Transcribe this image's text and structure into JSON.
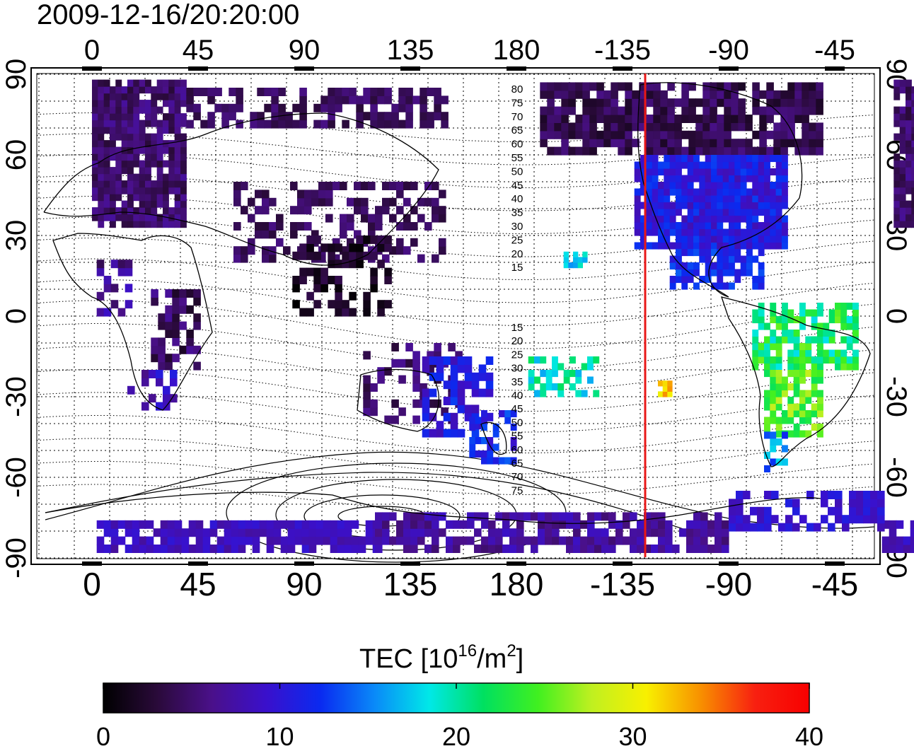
{
  "title": "2009-12-16/20:20:00",
  "map": {
    "lon_ticks": [
      "0",
      "45",
      "90",
      "135",
      "180",
      "-135",
      "-90",
      "-45"
    ],
    "lat_ticks": [
      "90",
      "60",
      "30",
      "0",
      "-30",
      "-60",
      "-90"
    ],
    "contour_labels_north": [
      "80",
      "75",
      "70",
      "65",
      "60",
      "55",
      "50",
      "45",
      "40",
      "35",
      "30",
      "25",
      "20",
      "15"
    ],
    "contour_labels_south": [
      "15",
      "20",
      "25",
      "30",
      "35",
      "40",
      "45",
      "50",
      "55",
      "60",
      "65",
      "70",
      "75"
    ]
  },
  "marker_line": {
    "color": "#e81818"
  },
  "colorbar": {
    "label_main": "TEC  [10",
    "label_sup1": "16",
    "label_mid": "/m",
    "label_sup2": "2",
    "label_end": "]",
    "ticks": [
      "0",
      "10",
      "20",
      "30",
      "40"
    ],
    "colormap_stops": [
      "#000000",
      "#2a0a3a",
      "#4a108a",
      "#3a10cc",
      "#0a2af0",
      "#0a8af8",
      "#00e8e8",
      "#00e060",
      "#40f020",
      "#c0f020",
      "#f8f000",
      "#f89000",
      "#f82010",
      "#f80000"
    ]
  }
}
